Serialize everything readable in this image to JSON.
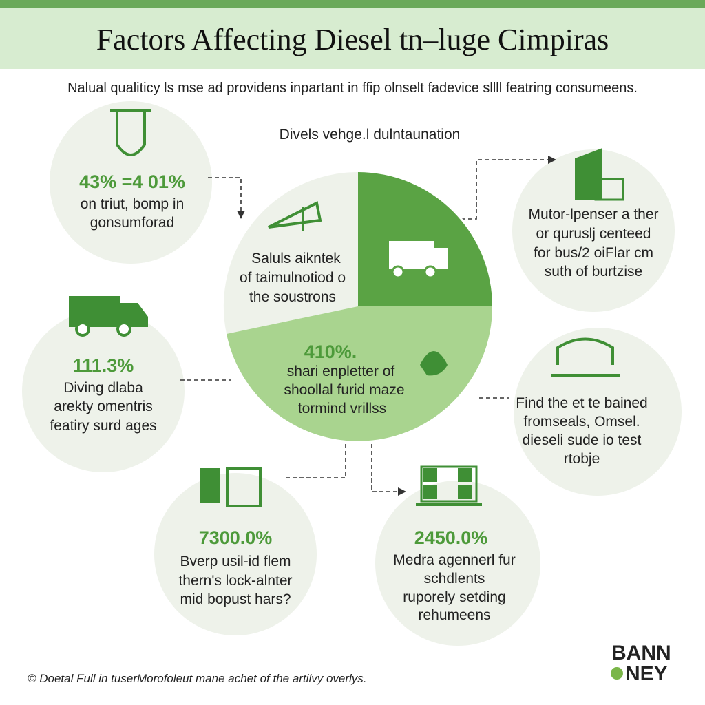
{
  "header": {
    "title": "Factors Affecting Diesel tn–luge Cimpiras",
    "subtitle": "Nalual qualiticy ls mse ad providens inpartant in ffip olnselt fadevice sllll featring consumeens."
  },
  "pie": {
    "title": "Divels vehge.l dulntaunation",
    "left_text": [
      "Saluls aikntek",
      "of taimulnotiod o",
      "the soustrons"
    ],
    "bottom_stat": "410%.",
    "bottom_text": [
      "shari enpletter of",
      "shoollal furid maze",
      "tormind vrillss"
    ]
  },
  "cards": [
    {
      "stat": "43% =4 01%",
      "lines": [
        "on triut, bomp in",
        "gonsumforad"
      ]
    },
    {
      "lines": [
        "Mutor-lpenser a ther",
        "or quruslj centeed",
        "for bus/2 oiFlar cm",
        "suth of burtzise"
      ]
    },
    {
      "stat": "111.3%",
      "lines": [
        "Diving dlaba",
        "arekty omentris",
        "featiry surd ages"
      ]
    },
    {
      "lines": [
        "Find the et te bained",
        "fromseals, Omsel.",
        "dieseli sude io test",
        "rtobje"
      ]
    },
    {
      "stat": "7300.0%",
      "lines": [
        "Bverp usil-id flem",
        "thern's lock-alnter",
        "mid bopust hars?"
      ]
    },
    {
      "stat": "2450.0%",
      "lines": [
        "Medra agennerl fur",
        "schdlents",
        "ruporely setding",
        "rehumeens"
      ]
    }
  ],
  "footer": {
    "note": "© Doetal Full in tuserMorofoleut mane achet of the artilvy overlys.",
    "logo": [
      "BANN",
      "NEY"
    ]
  }
}
